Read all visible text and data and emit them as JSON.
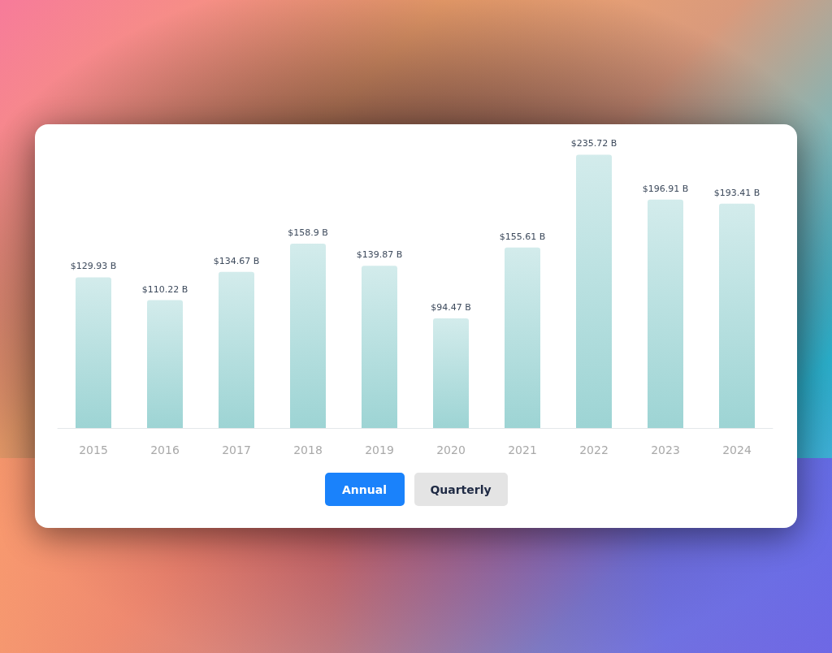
{
  "chart_data": {
    "type": "bar",
    "categories": [
      "2015",
      "2016",
      "2017",
      "2018",
      "2019",
      "2020",
      "2021",
      "2022",
      "2023",
      "2024"
    ],
    "values": [
      129.93,
      110.22,
      134.67,
      158.9,
      139.87,
      94.47,
      155.61,
      235.72,
      196.91,
      193.41
    ],
    "value_labels": [
      "$129.93 B",
      "$110.22 B",
      "$134.67 B",
      "$158.9 B",
      "$139.87 B",
      "$94.47 B",
      "$155.61 B",
      "$235.72 B",
      "$196.91 B",
      "$193.41 B"
    ],
    "color": "#9dd4d4",
    "annotations": [
      "Annual",
      "Quarterly"
    ]
  }
}
